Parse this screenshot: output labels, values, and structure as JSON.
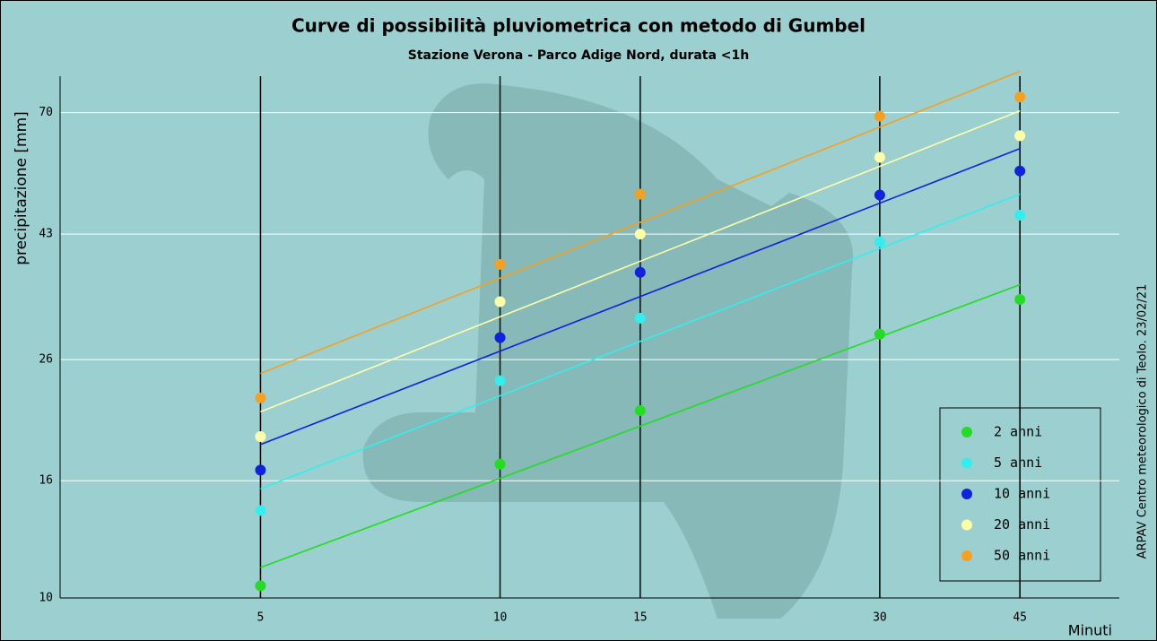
{
  "chart_data": {
    "type": "scatter",
    "title": "Curve di possibilità pluviometrica con metodo di Gumbel",
    "subtitle": "Stazione Verona - Parco Adige Nord, durata <1h",
    "xlabel": "Minuti",
    "ylabel": "precipitazione [mm]",
    "credit": "ARPAV Centro meteorologico di Teolo. 23/02/21",
    "x": [
      5,
      10,
      15,
      30,
      45
    ],
    "fit_x": [
      5,
      45
    ],
    "xlim": [
      2.8,
      60
    ],
    "ylim": [
      10,
      81
    ],
    "xticks": [
      5,
      10,
      15,
      30,
      45
    ],
    "yticks": [
      10,
      16,
      26,
      43,
      70
    ],
    "log_x": true,
    "log_y": true,
    "legend": "lower right",
    "series": [
      {
        "name": "2 anni",
        "color": "#22dd22",
        "values": [
          10.5,
          17.1,
          21.2,
          28.8,
          33.1
        ],
        "fit_values": [
          11.3,
          35.1
        ]
      },
      {
        "name": "5 anni",
        "color": "#33eeee",
        "values": [
          14.2,
          23.9,
          30.7,
          41.7,
          46.4
        ],
        "fit_values": [
          15.5,
          50.5
        ]
      },
      {
        "name": "10 anni",
        "color": "#1122dd",
        "values": [
          16.7,
          28.4,
          36.9,
          50.3,
          55.4
        ],
        "fit_values": [
          18.5,
          60.6
        ]
      },
      {
        "name": "20 anni",
        "color": "#ffffaa",
        "values": [
          19.1,
          32.8,
          43.0,
          58.5,
          63.8
        ],
        "fit_values": [
          21.1,
          70.5
        ]
      },
      {
        "name": "50 anni",
        "color": "#f5a020",
        "values": [
          22.3,
          38.1,
          50.5,
          69.0,
          74.5
        ],
        "fit_values": [
          24.6,
          82.6
        ]
      }
    ]
  }
}
